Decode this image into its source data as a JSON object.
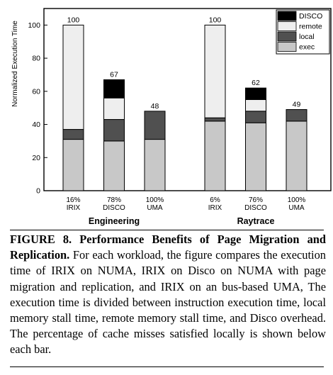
{
  "chart_data": {
    "type": "bar",
    "stacked": true,
    "ylabel": "Normalized Execution Time",
    "ylim": [
      0,
      110
    ],
    "yticks": [
      0,
      20,
      40,
      60,
      80,
      100
    ],
    "grid": false,
    "legend_position": "top-right",
    "legend": [
      "DISCO",
      "remote",
      "local",
      "exec"
    ],
    "series_colors": {
      "exec": "#c8c8c8",
      "local": "#505050",
      "remote": "#eeeeee",
      "DISCO": "#000000"
    },
    "groups": [
      {
        "label": "Engineering",
        "bars": [
          {
            "pct": "16%",
            "config": "IRIX",
            "total": "100",
            "exec": 31,
            "local": 6,
            "remote": 63,
            "disco": 0
          },
          {
            "pct": "78%",
            "config": "DISCO",
            "total": "67",
            "exec": 30,
            "local": 13,
            "remote": 13,
            "disco": 11
          },
          {
            "pct": "100%",
            "config": "UMA",
            "total": "48",
            "exec": 31,
            "local": 17,
            "remote": 0,
            "disco": 0
          }
        ]
      },
      {
        "label": "Raytrace",
        "bars": [
          {
            "pct": "6%",
            "config": "IRIX",
            "total": "100",
            "exec": 42,
            "local": 2,
            "remote": 56,
            "disco": 0
          },
          {
            "pct": "76%",
            "config": "DISCO",
            "total": "62",
            "exec": 41,
            "local": 7,
            "remote": 7,
            "disco": 7
          },
          {
            "pct": "100%",
            "config": "UMA",
            "total": "49",
            "exec": 42,
            "local": 7,
            "remote": 0,
            "disco": 0
          }
        ]
      }
    ]
  },
  "caption": {
    "label": "FIGURE 8. Performance Benefits of Page Migration and Replication.",
    "text": "For each workload, the figure compares the execution time of IRIX on NUMA, IRIX on Disco on NUMA with page migration and replication, and IRIX on an bus-based UMA, The execution time is divided between instruction execution time, local memory stall time, remote memory stall time, and Disco overhead. The percentage of cache misses satisfied locally is shown below each bar."
  }
}
